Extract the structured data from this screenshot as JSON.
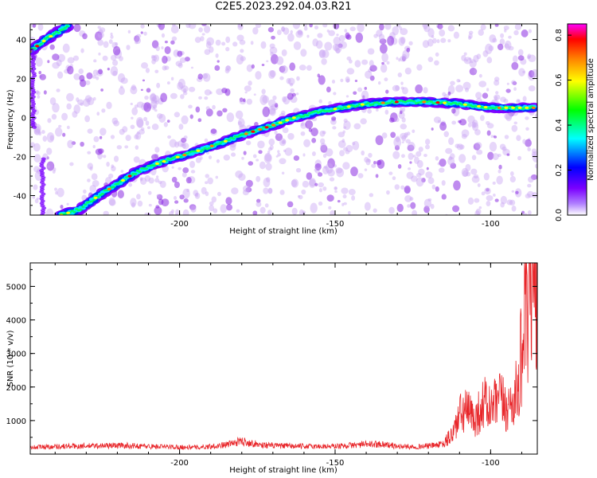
{
  "title": "C2E5.2023.292.04.03.R21",
  "chart_data": [
    {
      "type": "heatmap",
      "xlabel": "Height of straight line (km)",
      "ylabel": "Frequency (Hz)",
      "xlim": [
        -248,
        -85
      ],
      "ylim": [
        -50,
        48
      ],
      "x_ticks": [
        -200,
        -150,
        -100
      ],
      "y_ticks": [
        -40,
        -20,
        0,
        20,
        40
      ],
      "colorbar": {
        "label": "Normalized spectral amplitude",
        "range": [
          0,
          0.85
        ],
        "ticks": [
          "0.0",
          "0.2",
          "0.4",
          "0.6",
          "0.8"
        ],
        "colors": [
          "#ffffff",
          "#7b00ff",
          "#0000ff",
          "#00ffff",
          "#00ff00",
          "#ffff00",
          "#ff7f00",
          "#ff0000",
          "#ff00ff"
        ]
      },
      "ridge": {
        "x": [
          -238,
          -232,
          -226,
          -220,
          -214,
          -208,
          -200,
          -192,
          -185,
          -178,
          -170,
          -163,
          -155,
          -148,
          -140,
          -130,
          -120,
          -110,
          -100,
          -92,
          -86
        ],
        "y": [
          -50,
          -47,
          -40,
          -34,
          -28,
          -24,
          -20,
          -16,
          -12,
          -8,
          -4,
          0,
          3,
          5,
          7,
          8,
          8,
          7,
          5,
          5,
          5
        ]
      },
      "upper_branch": {
        "x": [
          -248,
          -243,
          -239,
          -236
        ],
        "y": [
          34,
          40,
          44,
          47
        ]
      }
    },
    {
      "type": "line",
      "xlabel": "Height of straight line (km)",
      "ylabel": "SNR (10 * v/v)",
      "xlim": [
        -248,
        -85
      ],
      "ylim": [
        0,
        5700
      ],
      "x_ticks": [
        -200,
        -150,
        -100
      ],
      "y_ticks": [
        1000,
        2000,
        3000,
        4000,
        5000
      ],
      "color": "#e8262a",
      "series": [
        {
          "x": [
            -248,
            -240,
            -230,
            -220,
            -210,
            -200,
            -195,
            -190,
            -185,
            -180,
            -175,
            -170,
            -160,
            -150,
            -145,
            -140,
            -135,
            -130,
            -125,
            -120,
            -115,
            -112,
            -110,
            -108,
            -105,
            -102,
            -100,
            -97,
            -95,
            -93,
            -91,
            -90,
            -89,
            -88,
            -87,
            -86,
            -85
          ],
          "values": [
            200,
            230,
            240,
            260,
            230,
            210,
            200,
            230,
            280,
            390,
            290,
            250,
            230,
            230,
            260,
            290,
            300,
            230,
            220,
            240,
            300,
            650,
            1150,
            1300,
            1050,
            1550,
            1300,
            1650,
            1350,
            1550,
            2000,
            3200,
            4100,
            3500,
            5400,
            4900,
            5600
          ]
        }
      ]
    }
  ]
}
